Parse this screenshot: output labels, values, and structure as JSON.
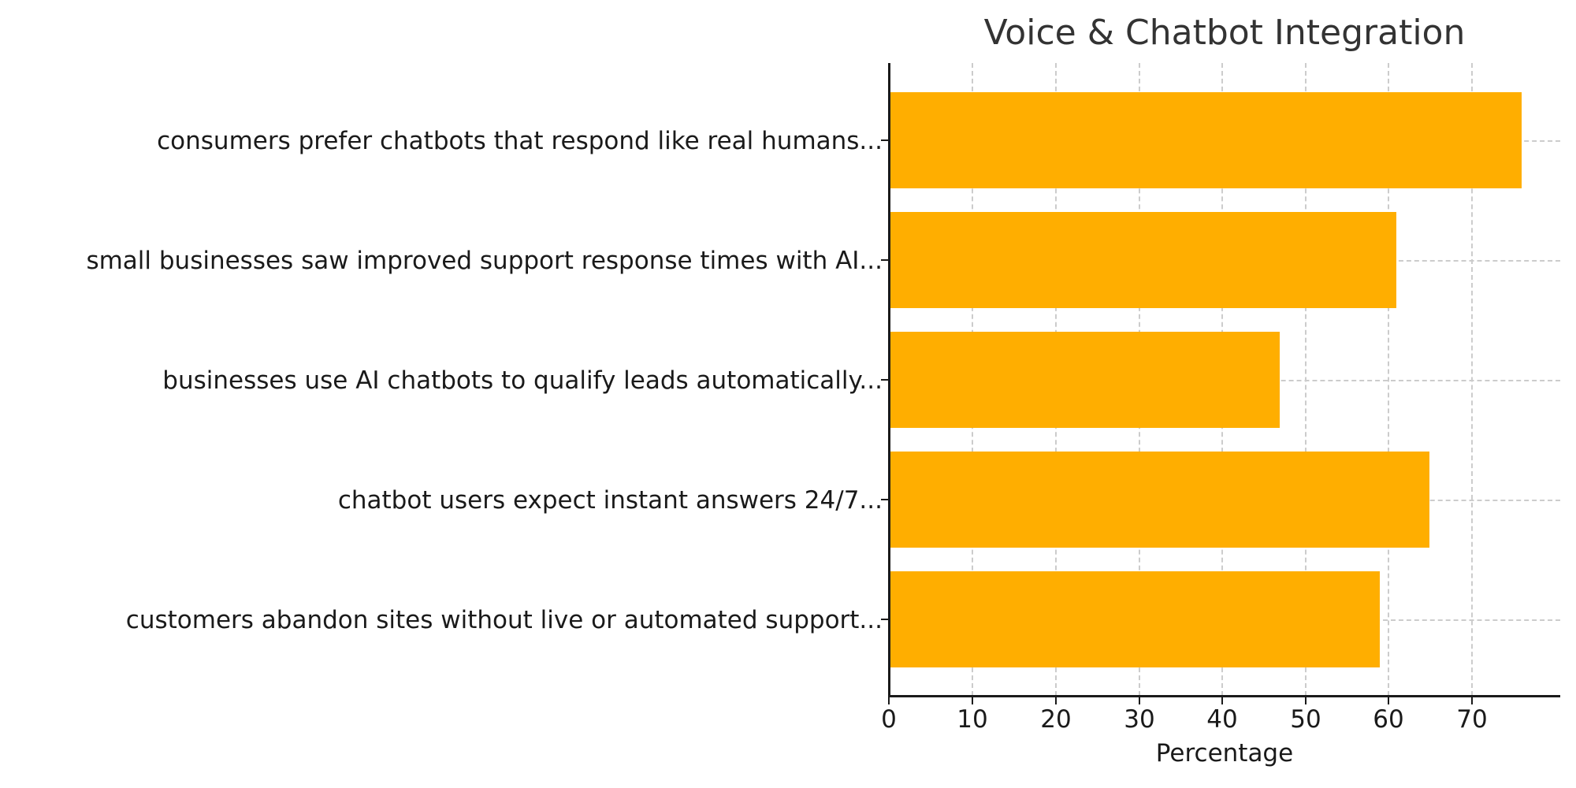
{
  "chart_data": {
    "type": "bar",
    "orientation": "horizontal",
    "title": "Voice & Chatbot Integration",
    "xlabel": "Percentage",
    "ylabel": "",
    "xlim": [
      0,
      80
    ],
    "x_ticks": [
      "0",
      "10",
      "20",
      "30",
      "40",
      "50",
      "60",
      "70"
    ],
    "grid": true,
    "bar_color": "#FFAE00",
    "categories": [
      "consumers prefer chatbots that respond like real humans...",
      "small businesses saw improved support response times with AI...",
      "businesses use AI chatbots to qualify leads automatically...",
      "chatbot users expect instant answers 24/7...",
      "customers abandon sites without live or automated support..."
    ],
    "values": [
      76,
      61,
      47,
      65,
      59
    ]
  }
}
